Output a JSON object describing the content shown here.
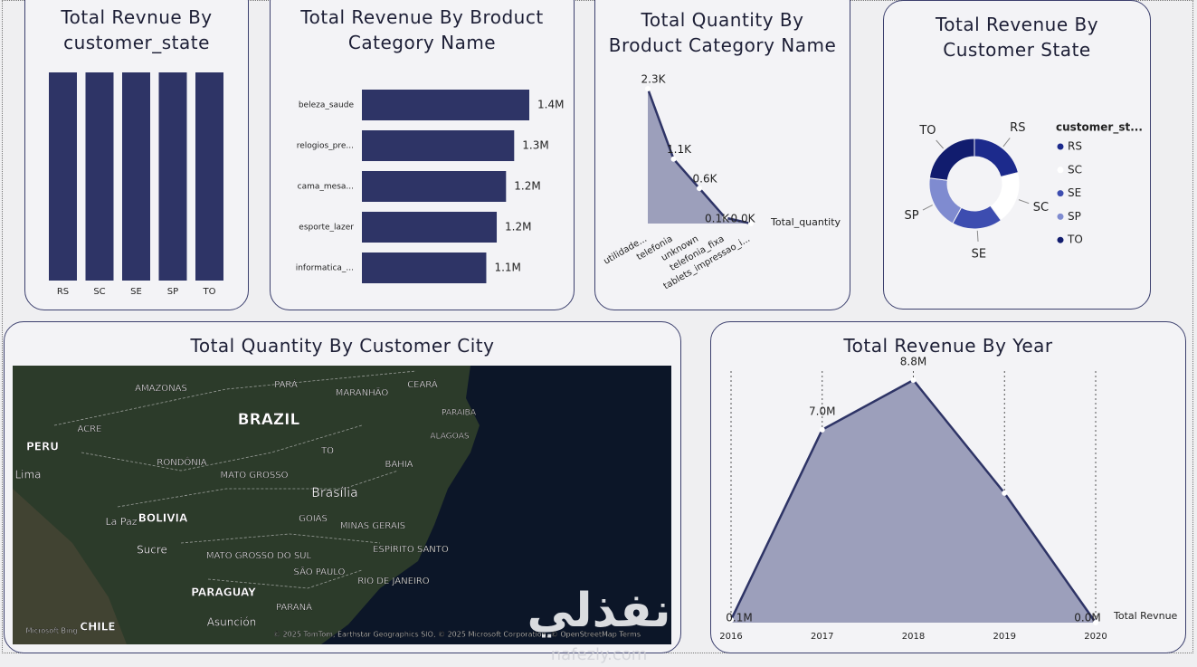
{
  "chart_data": [
    {
      "type": "bar",
      "title": "Total Revnue By customer_state",
      "categories": [
        "RS",
        "SC",
        "SE",
        "SP",
        "TO"
      ],
      "values": [
        20,
        20,
        20,
        20,
        20
      ],
      "color": "#2e3466"
    },
    {
      "type": "hbar",
      "title": "Total Revenue By Broduct Category Name",
      "categories": [
        "beleza_saude",
        "relogios_pre...",
        "cama_mesa...",
        "esporte_lazer",
        "informatica_..."
      ],
      "values": [
        1440000,
        1310000,
        1240000,
        1160000,
        1070000
      ],
      "value_labels": [
        "1.4M",
        "1.3M",
        "1.2M",
        "1.2M",
        "1.1M"
      ],
      "color": "#2e3466"
    },
    {
      "type": "area",
      "title": "Total Quantity By Broduct Category Name",
      "categories": [
        "utilidade...",
        "telefonia",
        "unknown",
        "telefonia_fixa",
        "tablets_impressao_i..."
      ],
      "series": [
        {
          "name": "Total_quantity",
          "color": "#2e3466",
          "values": [
            2300,
            1100,
            600,
            100,
            0
          ],
          "value_labels": [
            "2.3K",
            "1.1K",
            "0.6K",
            "0.1K",
            "0.0K"
          ]
        }
      ]
    },
    {
      "type": "donut",
      "title": "Total Revenue By Customer State",
      "legend_title": "customer_st...",
      "legend": "right",
      "categories": [
        "RS",
        "SC",
        "SE",
        "SP",
        "TO"
      ],
      "values": [
        21,
        19,
        18,
        19,
        23
      ],
      "colors": [
        "#1c2a8c",
        "#ffffff",
        "#3d4db0",
        "#7f8bd0",
        "#111c6e"
      ]
    },
    {
      "type": "map",
      "title": "Total Quantity By Customer City",
      "labels": [
        "AMAZONAS",
        "PARÁ",
        "MARANHÃO",
        "CEARÁ",
        "BRAZIL",
        "PARAIBA",
        "ACRE",
        "ALAGOAS",
        "PERU",
        "TO",
        "RONDÔNIA",
        "BAHIA",
        "Lima",
        "MATO GROSSO",
        "Brasília",
        "BOLIVIA",
        "La Paz",
        "GOIÁS",
        "MINAS GERAIS",
        "Sucre",
        "ESPÍRITO SANTO",
        "MATO GROSSO DO SUL",
        "SÃO PAULO",
        "RIO DE JANEIRO",
        "PARAGUAY",
        "PARANÁ",
        "Asunción",
        "CHILE",
        "Microsoft Bing",
        "© 2025 TomTom, Earthstar Geographics SIO, © 2025 Microsoft Corporation, © OpenStreetMap  Terms"
      ]
    },
    {
      "type": "area",
      "title": "Total Revenue By Year",
      "categories": [
        "2016",
        "2017",
        "2018",
        "2019",
        "2020"
      ],
      "grid": true,
      "series": [
        {
          "name": "Total Revnue",
          "color": "#2e3466",
          "values": [
            100000,
            7000000,
            8800000,
            4700000,
            0
          ],
          "value_labels": [
            "0.1M",
            "7.0M",
            "8.8M",
            null,
            "0.0M"
          ]
        }
      ]
    }
  ],
  "watermark": {
    "arabic": "نفذلي",
    "latin": "nafezly.com"
  }
}
